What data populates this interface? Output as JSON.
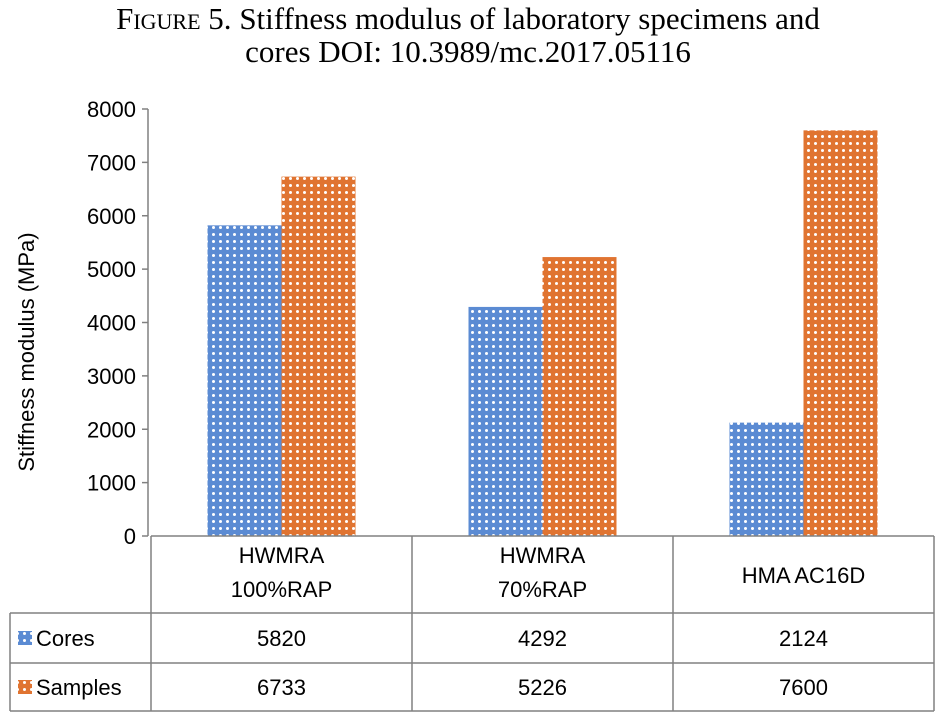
{
  "caption": {
    "figure_label": "Figure 5.",
    "line1_rest": " Stiffness modulus of laboratory specimens and",
    "line2": "cores DOI: 10.3989/mc.2017.05116"
  },
  "colors": {
    "cores": "#5b8bd3",
    "samples": "#e07431",
    "axis": "#808080",
    "dot": "#ffffff"
  },
  "chart_data": {
    "type": "bar",
    "ylabel": "Stiffness modulus (MPa)",
    "ylim": [
      0,
      8000
    ],
    "yticks": [
      0,
      1000,
      2000,
      3000,
      4000,
      5000,
      6000,
      7000,
      8000
    ],
    "grid": false,
    "legend": "data-table",
    "categories": [
      {
        "line1": "HWMRA",
        "line2": "100%RAP"
      },
      {
        "line1": "HWMRA",
        "line2": "70%RAP"
      },
      {
        "line1": "HMA AC16D",
        "line2": ""
      }
    ],
    "series": [
      {
        "name": "Cores",
        "values": [
          5820,
          4292,
          2124
        ]
      },
      {
        "name": "Samples",
        "values": [
          6733,
          5226,
          7600
        ]
      }
    ]
  }
}
